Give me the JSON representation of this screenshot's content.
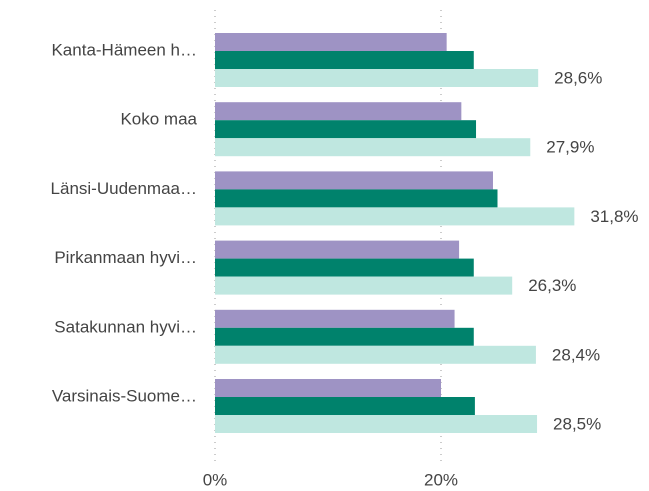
{
  "chart_data": {
    "type": "hbar",
    "categories": [
      "Kanta-Hämeen h…",
      "Koko maa",
      "Länsi-Uudenmaa…",
      "Pirkanmaan hyvi…",
      "Satakunnan hyvi…",
      "Varsinais-Suome…"
    ],
    "series": [
      {
        "color": "#9e93c4",
        "values": [
          20.5,
          21.8,
          24.6,
          21.6,
          21.2,
          20.0
        ]
      },
      {
        "color": "#00826c",
        "values": [
          22.9,
          23.1,
          25.0,
          22.9,
          22.9,
          23.0
        ]
      },
      {
        "color": "#bfe7e0",
        "values": [
          28.6,
          27.9,
          31.8,
          26.3,
          28.4,
          28.5
        ],
        "value_labels": [
          "28,6%",
          "27,9%",
          "31,8%",
          "26,3%",
          "28,4%",
          "28,5%"
        ]
      }
    ],
    "xlim": [
      0,
      38
    ],
    "xticks": [
      {
        "value": 0,
        "label": "0%"
      },
      {
        "value": 20,
        "label": "20%"
      }
    ],
    "grid": true
  }
}
